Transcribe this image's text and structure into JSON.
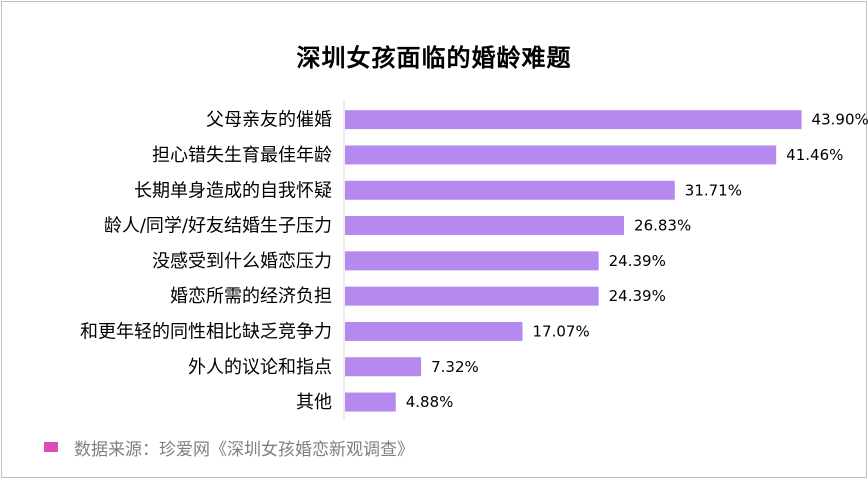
{
  "chart_data": {
    "type": "bar",
    "orientation": "horizontal",
    "title": "深圳女孩面临的婚龄难题",
    "categories": [
      "父母亲友的催婚",
      "担心错失生育最佳年龄",
      "长期单身造成的自我怀疑",
      "龄人/同学/好友结婚生子压力",
      "没感受到什么婚恋压力",
      "婚恋所需的经济负担",
      "和更年轻的同性相比缺乏竞争力",
      "外人的议论和指点",
      "其他"
    ],
    "values": [
      43.9,
      41.46,
      31.71,
      26.83,
      24.39,
      24.39,
      17.07,
      7.32,
      4.88
    ],
    "value_labels": [
      "43.90%",
      "41.46%",
      "31.71%",
      "26.83%",
      "24.39%",
      "24.39%",
      "17.07%",
      "7.32%",
      "4.88%"
    ],
    "xlim": [
      0,
      45
    ],
    "grid": false,
    "bar_color": "#b589ee"
  },
  "source": {
    "text": "数据来源：珍爱网《深圳女孩婚恋新观调查》",
    "swatch_color": "#d94fb4"
  }
}
